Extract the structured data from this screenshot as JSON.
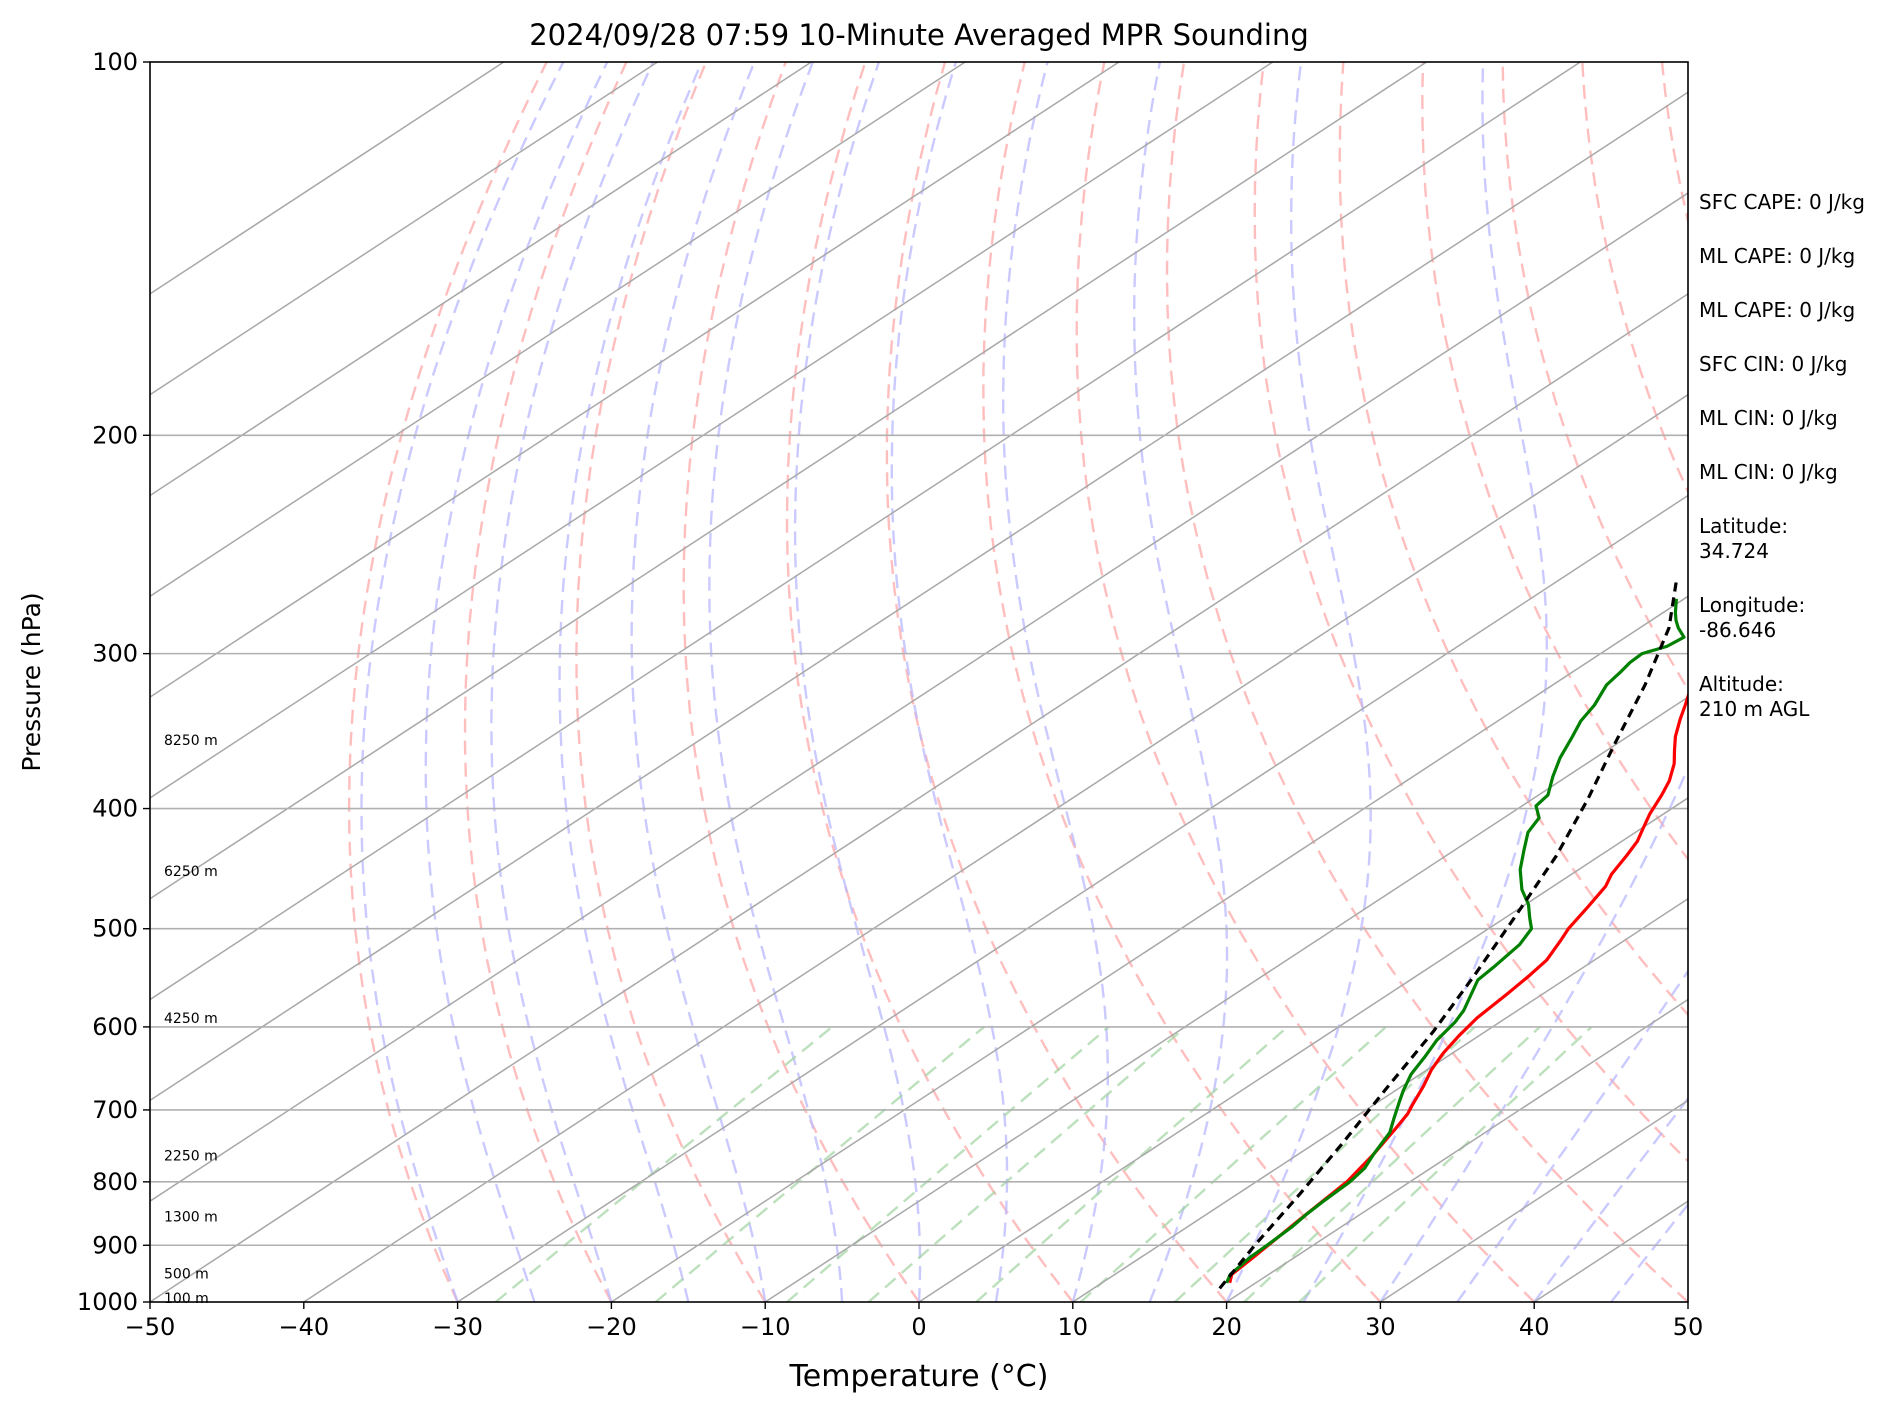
{
  "chart_data": {
    "type": "line",
    "title": "2024/09/28 07:59 10-Minute Averaged MPR Sounding",
    "xlabel": "Temperature (°C)",
    "ylabel": "Pressure (hPa)",
    "xlim": [
      -50,
      50
    ],
    "ylim": [
      1000,
      100
    ],
    "y_scale": "log",
    "x_ticks": [
      "−50",
      "−40",
      "−30",
      "−20",
      "−10",
      "0",
      "10",
      "20",
      "30",
      "40",
      "50"
    ],
    "y_ticks": [
      "100",
      "200",
      "300",
      "400",
      "500",
      "600",
      "700",
      "800",
      "900",
      "1000"
    ],
    "grid": true,
    "height_labels": [
      {
        "p": 353,
        "text": "8250 m"
      },
      {
        "p": 450,
        "text": "6250 m"
      },
      {
        "p": 591,
        "text": "4250 m"
      },
      {
        "p": 763,
        "text": "2250 m"
      },
      {
        "p": 855,
        "text": "1300 m"
      },
      {
        "p": 950,
        "text": "500 m"
      },
      {
        "p": 994,
        "text": "100 m"
      }
    ],
    "series": [
      {
        "color": "#ff0000",
        "points": [
          [
            18.3,
            965
          ],
          [
            17.6,
            950
          ],
          [
            17.3,
            920
          ],
          [
            16.6,
            860
          ],
          [
            15.9,
            800
          ],
          [
            14.9,
            760
          ],
          [
            13.8,
            725
          ],
          [
            13.1,
            705
          ],
          [
            12.6,
            695
          ],
          [
            11.4,
            670
          ],
          [
            10.3,
            650
          ],
          [
            9.4,
            630
          ],
          [
            8.7,
            610
          ],
          [
            8.1,
            590
          ],
          [
            7.7,
            565
          ],
          [
            7.3,
            545
          ],
          [
            6.9,
            530
          ],
          [
            5.8,
            510
          ],
          [
            5.2,
            500
          ],
          [
            4.3,
            480
          ],
          [
            3.4,
            462
          ],
          [
            2.6,
            452
          ],
          [
            1.7,
            436
          ],
          [
            1.0,
            425
          ],
          [
            0.1,
            415
          ],
          [
            -0.9,
            404
          ],
          [
            -2.0,
            390
          ],
          [
            -2.9,
            380
          ],
          [
            -4.3,
            368
          ],
          [
            -5.6,
            359
          ],
          [
            -6.9,
            350
          ],
          [
            -8.3,
            339
          ],
          [
            -9.4,
            330
          ],
          [
            -10.7,
            320
          ],
          [
            -11.8,
            311
          ],
          [
            -12.6,
            305
          ],
          [
            -13.9,
            295
          ],
          [
            -15.0,
            288
          ],
          [
            -16.6,
            279
          ],
          [
            -17.8,
            270
          ]
        ]
      },
      {
        "color": "#008000",
        "points": [
          [
            18.1,
            965
          ],
          [
            17.5,
            950
          ],
          [
            17.1,
            920
          ],
          [
            17.0,
            900
          ],
          [
            16.8,
            870
          ],
          [
            16.5,
            850
          ],
          [
            16.3,
            830
          ],
          [
            16.1,
            800
          ],
          [
            15.7,
            780
          ],
          [
            14.9,
            760
          ],
          [
            13.8,
            730
          ],
          [
            12.6,
            710
          ],
          [
            11.4,
            690
          ],
          [
            10.5,
            675
          ],
          [
            9.4,
            655
          ],
          [
            8.6,
            635
          ],
          [
            7.7,
            615
          ],
          [
            7.1,
            595
          ],
          [
            6.5,
            582
          ],
          [
            5.4,
            565
          ],
          [
            4.4,
            550
          ],
          [
            4.1,
            535
          ],
          [
            3.6,
            515
          ],
          [
            2.8,
            500
          ],
          [
            1.6,
            490
          ],
          [
            0.2,
            478
          ],
          [
            -1.7,
            465
          ],
          [
            -3.8,
            448
          ],
          [
            -5.5,
            432
          ],
          [
            -7.0,
            418
          ],
          [
            -7.7,
            407
          ],
          [
            -9.1,
            398
          ],
          [
            -9.4,
            390
          ],
          [
            -10.9,
            377
          ],
          [
            -12.3,
            364
          ],
          [
            -13.5,
            351
          ],
          [
            -14.6,
            340
          ],
          [
            -15.3,
            330
          ],
          [
            -16.5,
            318
          ],
          [
            -16.9,
            310
          ],
          [
            -17.2,
            305
          ],
          [
            -17.3,
            300
          ],
          [
            -16.4,
            296
          ],
          [
            -16.2,
            291
          ],
          [
            -17.5,
            286
          ],
          [
            -18.4,
            282
          ],
          [
            -19.2,
            278
          ],
          [
            -20.5,
            271
          ]
        ]
      },
      {
        "color": "#000000",
        "dashed": true,
        "points": [
          [
            18.2,
            975
          ],
          [
            16.2,
            900
          ],
          [
            14.1,
            820
          ],
          [
            11.8,
            745
          ],
          [
            9.3,
            675
          ],
          [
            6.6,
            605
          ],
          [
            3.7,
            545
          ],
          [
            0.6,
            490
          ],
          [
            -2.8,
            437
          ],
          [
            -6.4,
            393
          ],
          [
            -10.1,
            355
          ],
          [
            -14.0,
            318
          ],
          [
            -18.1,
            286
          ],
          [
            -22.3,
            262
          ]
        ]
      }
    ]
  },
  "stats": {
    "sfc_cape": "SFC CAPE: 0 J/kg",
    "ml_cape": "ML CAPE: 0 J/kg",
    "ml_cape_2": "ML CAPE: 0 J/kg",
    "sfc_cin": "SFC CIN: 0 J/kg",
    "ml_cin": "ML CIN: 0 J/kg",
    "ml_cin_2": "ML CIN: 0 J/kg",
    "latitude": "Latitude:\n34.724",
    "longitude": "Longitude:\n-86.646",
    "altitude": "Altitude:\n210 m AGL"
  }
}
